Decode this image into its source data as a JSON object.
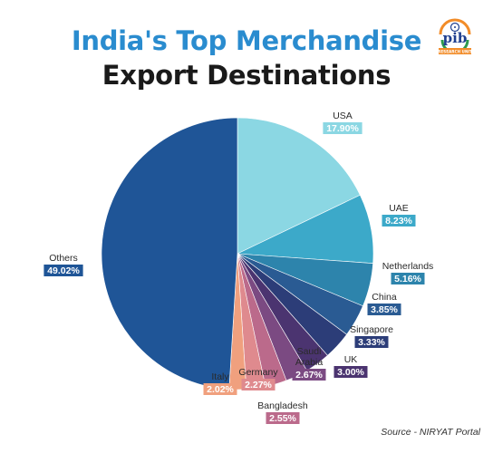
{
  "header": {
    "title_line1": "India's Top Merchandise",
    "title_line2": "Export Destinations",
    "title_line1_color": "#2a8ccf",
    "title_line2_color": "#1a1a1a",
    "logo_icon": "pib-logo-icon",
    "logo_text": "pib",
    "logo_subtext": "RESEARCH UNIT"
  },
  "chart_data": {
    "type": "pie",
    "start_angle_deg": 0,
    "direction": "clockwise",
    "slices": [
      {
        "label": "USA",
        "value": 17.9,
        "display": "17.90%",
        "color": "#8bd7e3"
      },
      {
        "label": "UAE",
        "value": 8.23,
        "display": "8.23%",
        "color": "#3ca9c9"
      },
      {
        "label": "Netherlands",
        "value": 5.16,
        "display": "5.16%",
        "color": "#2d84ac"
      },
      {
        "label": "China",
        "value": 3.85,
        "display": "3.85%",
        "color": "#2a5b93"
      },
      {
        "label": "Singapore",
        "value": 3.33,
        "display": "3.33%",
        "color": "#2c3d78"
      },
      {
        "label": "UK",
        "value": 3.0,
        "display": "3.00%",
        "color": "#4b3470"
      },
      {
        "label": "Saudi Arabia",
        "value": 2.67,
        "display": "2.67%",
        "color": "#7b4a82"
      },
      {
        "label": "Bangladesh",
        "value": 2.55,
        "display": "2.55%",
        "color": "#bb6a8b"
      },
      {
        "label": "Germany",
        "value": 2.27,
        "display": "2.27%",
        "color": "#df8a8e"
      },
      {
        "label": "Italy",
        "value": 2.02,
        "display": "2.02%",
        "color": "#f0a07e"
      },
      {
        "label": "Others",
        "value": 49.02,
        "display": "49.02%",
        "color": "#1f5597"
      }
    ]
  },
  "footer": {
    "source": "Source - NIRYAT Portal"
  }
}
